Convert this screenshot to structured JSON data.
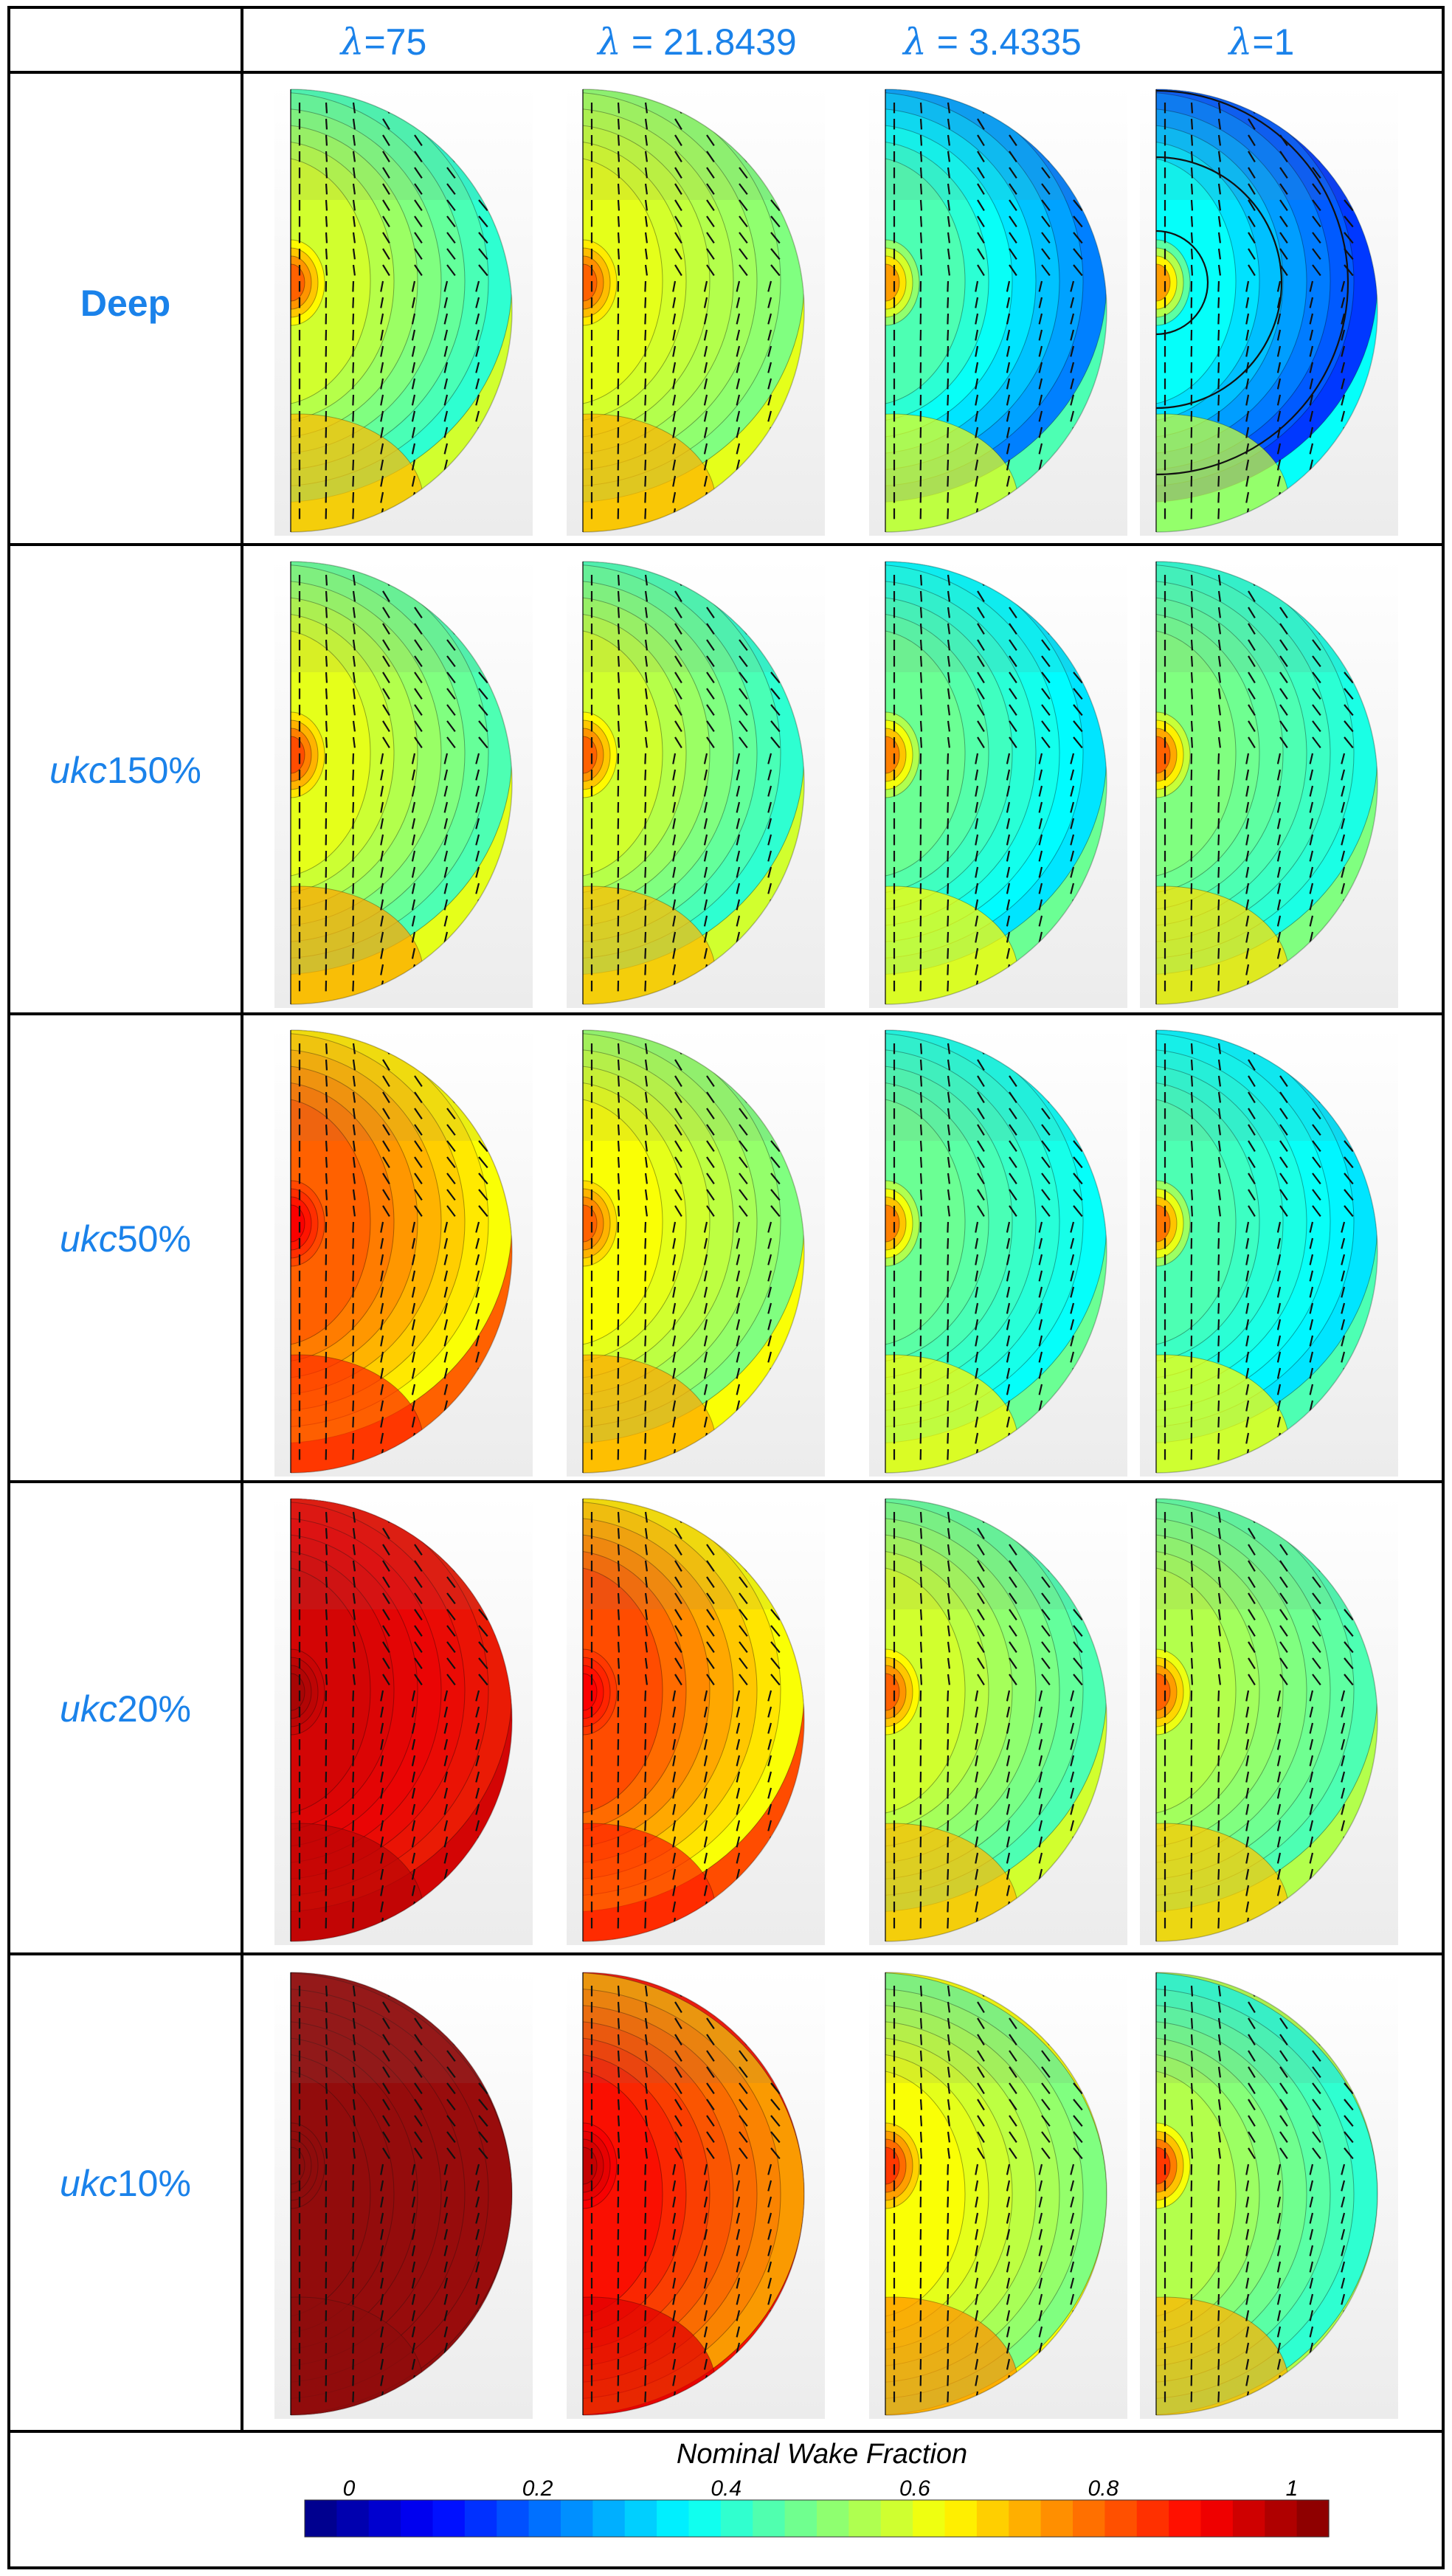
{
  "column_headers": [
    {
      "symbol": "λ",
      "value": "=75"
    },
    {
      "symbol": "λ",
      "value": " = 21.8439"
    },
    {
      "symbol": "λ",
      "value": " = 3.4335"
    },
    {
      "symbol": "λ",
      "value": "=1"
    }
  ],
  "rows": [
    {
      "label_italic": "",
      "label_normal": "Deep",
      "bold": true
    },
    {
      "label_italic": "ukc",
      "label_normal": "150%",
      "bold": false
    },
    {
      "label_italic": "ukc",
      "label_normal": "50%",
      "bold": false
    },
    {
      "label_italic": "ukc",
      "label_normal": "20%",
      "bold": false
    },
    {
      "label_italic": "ukc",
      "label_normal": "10%",
      "bold": false
    }
  ],
  "panel_wake_levels": [
    [
      [
        0.58,
        0.42,
        0.78
      ],
      [
        0.6,
        0.5,
        0.78
      ],
      [
        0.45,
        0.25,
        0.72
      ],
      [
        0.38,
        0.18,
        0.72
      ]
    ],
    [
      [
        0.6,
        0.45,
        0.8
      ],
      [
        0.58,
        0.42,
        0.78
      ],
      [
        0.48,
        0.35,
        0.75
      ],
      [
        0.5,
        0.4,
        0.78
      ]
    ],
    [
      [
        0.78,
        0.62,
        0.88
      ],
      [
        0.62,
        0.5,
        0.78
      ],
      [
        0.48,
        0.38,
        0.75
      ],
      [
        0.45,
        0.35,
        0.76
      ]
    ],
    [
      [
        0.9,
        0.85,
        0.95
      ],
      [
        0.8,
        0.62,
        0.88
      ],
      [
        0.58,
        0.45,
        0.78
      ],
      [
        0.55,
        0.45,
        0.78
      ]
    ],
    [
      [
        0.96,
        0.95,
        0.97
      ],
      [
        0.86,
        0.72,
        0.93
      ],
      [
        0.62,
        0.5,
        0.82
      ],
      [
        0.55,
        0.42,
        0.82
      ]
    ]
  ],
  "colorbar": {
    "title": "Nominal Wake Fraction",
    "tick_labels": [
      "0",
      "0.2",
      "0.4",
      "0.6",
      "0.8",
      "1"
    ],
    "range": [
      0,
      1
    ],
    "segments": 32,
    "colormap": [
      "#00007f",
      "#0000ff",
      "#00ffff",
      "#ffff00",
      "#ff0000",
      "#7f0000"
    ]
  },
  "colors": {
    "label_color": "#1a82ea",
    "grid_color": "#000000"
  }
}
